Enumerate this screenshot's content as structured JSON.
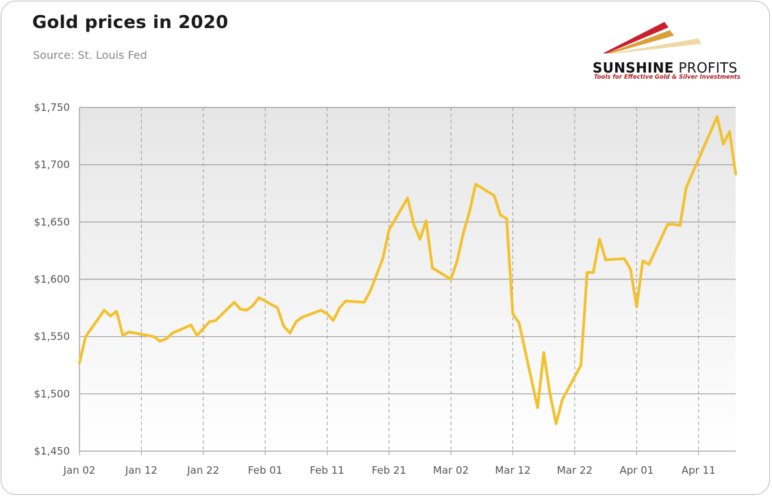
{
  "header": {
    "title": "Gold prices in 2020",
    "subtitle": "Source: St. Louis Fed"
  },
  "logo": {
    "name_bold": "SUNSHINE",
    "name_rest": " PROFITS",
    "tagline": "Tools for Effective Gold & Silver Investments"
  },
  "colors": {
    "line": "#F2C12E",
    "grid": "#9a9a9a",
    "logo_red": "#C8202F",
    "logo_gold": "#D9A038"
  },
  "chart_data": {
    "type": "line",
    "title": "Gold prices in 2020",
    "xlabel": "",
    "ylabel": "",
    "grid": true,
    "ylim": [
      1450,
      1750
    ],
    "xlim": [
      "2020-01-02",
      "2020-04-17"
    ],
    "y_ticks": [
      1450,
      1500,
      1550,
      1600,
      1650,
      1700,
      1750
    ],
    "y_tick_labels": [
      "$1,450",
      "$1,500",
      "$1,550",
      "$1,600",
      "$1,650",
      "$1,700",
      "$1,750"
    ],
    "x_ticks": [
      "2020-01-02",
      "2020-01-12",
      "2020-01-22",
      "2020-02-01",
      "2020-02-11",
      "2020-02-21",
      "2020-03-02",
      "2020-03-12",
      "2020-03-22",
      "2020-04-01",
      "2020-04-11"
    ],
    "x_tick_labels": [
      "Jan 02",
      "Jan 12",
      "Jan 22",
      "Feb 01",
      "Feb 11",
      "Feb 21",
      "Mar 02",
      "Mar 12",
      "Mar 22",
      "Apr 01",
      "Apr 11"
    ],
    "series": [
      {
        "x": [
          "2020-01-02",
          "2020-01-03",
          "2020-01-06",
          "2020-01-07",
          "2020-01-08",
          "2020-01-09",
          "2020-01-10",
          "2020-01-13",
          "2020-01-14",
          "2020-01-15",
          "2020-01-16",
          "2020-01-17",
          "2020-01-20",
          "2020-01-21",
          "2020-01-22",
          "2020-01-23",
          "2020-01-24",
          "2020-01-27",
          "2020-01-28",
          "2020-01-29",
          "2020-01-30",
          "2020-01-31",
          "2020-02-03",
          "2020-02-04",
          "2020-02-05",
          "2020-02-06",
          "2020-02-07",
          "2020-02-10",
          "2020-02-11",
          "2020-02-12",
          "2020-02-13",
          "2020-02-14",
          "2020-02-17",
          "2020-02-18",
          "2020-02-19",
          "2020-02-20",
          "2020-02-21",
          "2020-02-24",
          "2020-02-25",
          "2020-02-26",
          "2020-02-27",
          "2020-02-28",
          "2020-03-02",
          "2020-03-03",
          "2020-03-04",
          "2020-03-05",
          "2020-03-06",
          "2020-03-09",
          "2020-03-10",
          "2020-03-11",
          "2020-03-12",
          "2020-03-13",
          "2020-03-16",
          "2020-03-17",
          "2020-03-18",
          "2020-03-19",
          "2020-03-20",
          "2020-03-23",
          "2020-03-24",
          "2020-03-25",
          "2020-03-26",
          "2020-03-27",
          "2020-03-30",
          "2020-03-31",
          "2020-04-01",
          "2020-04-02",
          "2020-04-03",
          "2020-04-06",
          "2020-04-07",
          "2020-04-08",
          "2020-04-09",
          "2020-04-14",
          "2020-04-15",
          "2020-04-16",
          "2020-04-17"
        ],
        "values": [
          1527,
          1550,
          1573,
          1568,
          1572,
          1551,
          1554,
          1551,
          1550,
          1546,
          1548,
          1553,
          1560,
          1551,
          1557,
          1563,
          1564,
          1580,
          1574,
          1573,
          1577,
          1584,
          1575,
          1559,
          1553,
          1563,
          1567,
          1573,
          1570,
          1564,
          1575,
          1581,
          1580,
          1590,
          1604,
          1618,
          1643,
          1671,
          1648,
          1635,
          1651,
          1610,
          1600,
          1616,
          1640,
          1659,
          1683,
          1673,
          1656,
          1653,
          1570,
          1562,
          1488,
          1536,
          1500,
          1474,
          1495,
          1525,
          1606,
          1606,
          1635,
          1617,
          1618,
          1609,
          1576,
          1616,
          1613,
          1648,
          1648,
          1647,
          1680,
          1742,
          1718,
          1729,
          1692
        ]
      }
    ]
  }
}
